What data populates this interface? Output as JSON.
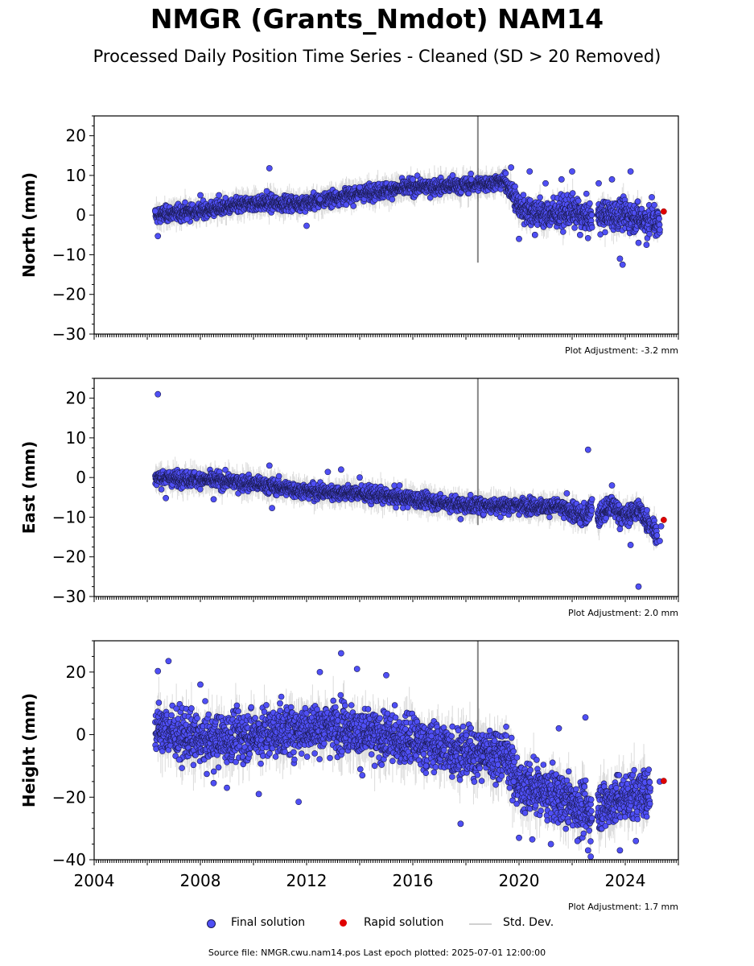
{
  "title": "NMGR (Grants_Nmdot) NAM14",
  "subtitle": "Processed Daily Position Time Series - Cleaned (SD > 20 Removed)",
  "legend": {
    "final": "Final solution",
    "rapid": "Rapid solution",
    "stddev": "Std. Dev."
  },
  "source": "Source file: NMGR.cwu.nam14.pos  Last epoch plotted: 2025-07-01 12:00:00",
  "colors": {
    "final": "#4f4ff5",
    "final_edge": "#1a1a50",
    "rapid": "#e00000",
    "stddev": "#b0b0b0"
  },
  "chart_data": [
    {
      "type": "scatter",
      "ylabel": "North (mm)",
      "ylim": [
        -30,
        25
      ],
      "yticks": [
        20,
        10,
        0,
        -10,
        -20,
        -30
      ],
      "xlim": [
        2004,
        2026
      ],
      "adjustment": "Plot Adjustment: -3.2 mm",
      "series": [
        {
          "name": "Final solution",
          "trend": [
            [
              2006.3,
              0
            ],
            [
              2008,
              1
            ],
            [
              2010,
              3
            ],
            [
              2012,
              3
            ],
            [
              2014,
              5.5
            ],
            [
              2016,
              7
            ],
            [
              2018,
              7.5
            ],
            [
              2019.5,
              8.5
            ],
            [
              2020,
              2
            ],
            [
              2021,
              0
            ],
            [
              2022,
              1
            ],
            [
              2022.7,
              -1
            ],
            [
              2023,
              0
            ],
            [
              2024,
              0
            ],
            [
              2025.3,
              -2
            ]
          ],
          "scatter": [
            [
              2006.3,
              1
            ],
            [
              2006.4,
              -5.3
            ],
            [
              2007.5,
              -1
            ],
            [
              2008,
              5
            ],
            [
              2008.7,
              5
            ],
            [
              2010.5,
              6
            ],
            [
              2010.6,
              11.8
            ],
            [
              2012,
              -2.7
            ],
            [
              2012.5,
              4
            ],
            [
              2014,
              7
            ],
            [
              2016,
              9
            ],
            [
              2017.5,
              10
            ],
            [
              2018.2,
              9
            ],
            [
              2019.7,
              12
            ],
            [
              2020,
              -6
            ],
            [
              2020.4,
              11
            ],
            [
              2020.6,
              -5
            ],
            [
              2021,
              8
            ],
            [
              2021.6,
              9
            ],
            [
              2022,
              11
            ],
            [
              2022.3,
              -5
            ],
            [
              2023,
              8
            ],
            [
              2023.5,
              9
            ],
            [
              2023.8,
              -11
            ],
            [
              2023.9,
              -12.5
            ],
            [
              2024.2,
              11
            ],
            [
              2024.5,
              -7
            ],
            [
              2024.8,
              -7.5
            ],
            [
              2025,
              4.5
            ],
            [
              2025.3,
              -3.7
            ]
          ]
        },
        {
          "name": "Rapid solution",
          "points": [
            [
              2025.45,
              0.9
            ]
          ]
        }
      ]
    },
    {
      "type": "scatter",
      "ylabel": "East (mm)",
      "ylim": [
        -30,
        25
      ],
      "yticks": [
        20,
        10,
        0,
        -10,
        -20,
        -30
      ],
      "xlim": [
        2004,
        2026
      ],
      "adjustment": "Plot Adjustment: 2.0 mm",
      "series": [
        {
          "name": "Final solution",
          "trend": [
            [
              2006.3,
              0
            ],
            [
              2008,
              -0.5
            ],
            [
              2010,
              -1.5
            ],
            [
              2012,
              -3.5
            ],
            [
              2014,
              -4
            ],
            [
              2016,
              -5.5
            ],
            [
              2018,
              -7
            ],
            [
              2020,
              -7
            ],
            [
              2021.5,
              -7.5
            ],
            [
              2022.5,
              -10
            ],
            [
              2022.8,
              -6
            ],
            [
              2023,
              -10
            ],
            [
              2023.5,
              -7
            ],
            [
              2024,
              -10
            ],
            [
              2024.5,
              -8
            ],
            [
              2025.2,
              -14
            ]
          ],
          "scatter": [
            [
              2006.4,
              21
            ],
            [
              2006.7,
              -5.2
            ],
            [
              2008.5,
              -5.5
            ],
            [
              2010.6,
              3
            ],
            [
              2010.7,
              -7.7
            ],
            [
              2012.8,
              1.4
            ],
            [
              2013.3,
              2
            ],
            [
              2014,
              0
            ],
            [
              2015.5,
              -2
            ],
            [
              2017.8,
              -10.5
            ],
            [
              2019.3,
              -10
            ],
            [
              2021.8,
              -4
            ],
            [
              2022.3,
              -11.5
            ],
            [
              2022.6,
              7
            ],
            [
              2023.5,
              -2
            ],
            [
              2023.8,
              -13
            ],
            [
              2024.2,
              -17
            ],
            [
              2024.5,
              -27.5
            ],
            [
              2025.3,
              -16
            ],
            [
              2025.35,
              -12.3
            ]
          ]
        },
        {
          "name": "Rapid solution",
          "points": [
            [
              2025.45,
              -10.7
            ]
          ]
        }
      ]
    },
    {
      "type": "scatter",
      "ylabel": "Height (mm)",
      "ylim": [
        -40,
        30
      ],
      "yticks": [
        20,
        0,
        -20,
        -40
      ],
      "xlim": [
        2004,
        2026
      ],
      "adjustment": "Plot Adjustment: 1.7 mm",
      "xticks": [
        "2004",
        "2008",
        "2012",
        "2016",
        "2020",
        "2024"
      ],
      "series": [
        {
          "name": "Final solution",
          "trend": [
            [
              2006.3,
              2
            ],
            [
              2008,
              -2
            ],
            [
              2010,
              0
            ],
            [
              2012,
              2
            ],
            [
              2013.5,
              3
            ],
            [
              2014,
              0
            ],
            [
              2016,
              -2
            ],
            [
              2018,
              -6
            ],
            [
              2019.5,
              -6
            ],
            [
              2020,
              -16
            ],
            [
              2021.5,
              -20
            ],
            [
              2022.5,
              -24
            ],
            [
              2022.8,
              -26
            ],
            [
              2023,
              -23
            ],
            [
              2024,
              -20
            ],
            [
              2025,
              -18
            ]
          ],
          "scatter": [
            [
              2006.4,
              20.3
            ],
            [
              2006.8,
              23.5
            ],
            [
              2007.2,
              -8
            ],
            [
              2008,
              16
            ],
            [
              2008.5,
              -15.5
            ],
            [
              2009,
              -17
            ],
            [
              2010.2,
              -19
            ],
            [
              2011,
              10
            ],
            [
              2011.7,
              -21.5
            ],
            [
              2012.5,
              20
            ],
            [
              2013.3,
              26
            ],
            [
              2013.9,
              21
            ],
            [
              2014.1,
              -13
            ],
            [
              2015,
              19
            ],
            [
              2016.5,
              -10
            ],
            [
              2017.8,
              -28.5
            ],
            [
              2019.8,
              -15
            ],
            [
              2020,
              -33
            ],
            [
              2020.5,
              -33.5
            ],
            [
              2021.2,
              -35
            ],
            [
              2021.5,
              2
            ],
            [
              2022.2,
              -34
            ],
            [
              2022.5,
              5.5
            ],
            [
              2022.6,
              -37
            ],
            [
              2022.7,
              -39
            ],
            [
              2023.8,
              -37
            ],
            [
              2024.4,
              -34
            ],
            [
              2025.3,
              -15
            ]
          ]
        },
        {
          "name": "Rapid solution",
          "points": [
            [
              2025.45,
              -14.8
            ]
          ]
        }
      ]
    }
  ]
}
